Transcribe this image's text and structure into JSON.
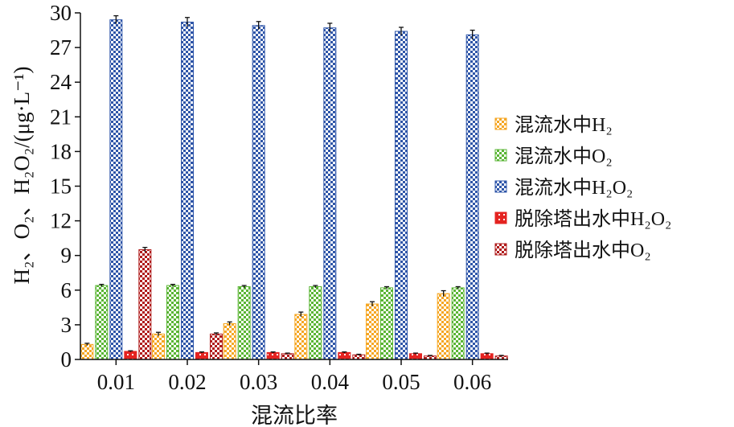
{
  "chart_data": {
    "type": "bar",
    "xlabel": "混流比率",
    "ylabel": "H₂、O₂、H₂O₂/(μg·L⁻¹)",
    "ylim": [
      0,
      30
    ],
    "yticks": [
      0,
      3,
      6,
      9,
      12,
      15,
      18,
      21,
      24,
      27,
      30
    ],
    "categories": [
      "0.01",
      "0.02",
      "0.03",
      "0.04",
      "0.05",
      "0.06"
    ],
    "grid": false,
    "legend_position": "right",
    "series": [
      {
        "name": "混流水中H₂",
        "color": "#f5a623",
        "pattern": "checker",
        "values": [
          1.3,
          2.2,
          3.1,
          3.9,
          4.8,
          5.7
        ],
        "errors": [
          0.1,
          0.15,
          0.15,
          0.2,
          0.2,
          0.25
        ]
      },
      {
        "name": "混流水中O₂",
        "color": "#5ab534",
        "pattern": "checker",
        "values": [
          6.4,
          6.4,
          6.3,
          6.3,
          6.2,
          6.2
        ],
        "errors": [
          0.1,
          0.1,
          0.1,
          0.1,
          0.1,
          0.1
        ]
      },
      {
        "name": "混流水中H₂O₂",
        "color": "#2e55a8",
        "pattern": "checker",
        "values": [
          29.4,
          29.2,
          28.9,
          28.7,
          28.4,
          28.1
        ],
        "errors": [
          0.35,
          0.4,
          0.35,
          0.4,
          0.35,
          0.4
        ]
      },
      {
        "name": "脱除塔出水中H₂O₂",
        "color": "#e42320",
        "pattern": "brick",
        "values": [
          0.7,
          0.6,
          0.6,
          0.6,
          0.5,
          0.5
        ],
        "errors": [
          0.05,
          0.05,
          0.05,
          0.05,
          0.05,
          0.05
        ]
      },
      {
        "name": "脱除塔出水中O₂",
        "color": "#b01c1c",
        "pattern": "checker",
        "values": [
          9.5,
          2.2,
          0.5,
          0.4,
          0.3,
          0.3
        ],
        "errors": [
          0.2,
          0.1,
          0.05,
          0.05,
          0.05,
          0.05
        ]
      }
    ]
  }
}
